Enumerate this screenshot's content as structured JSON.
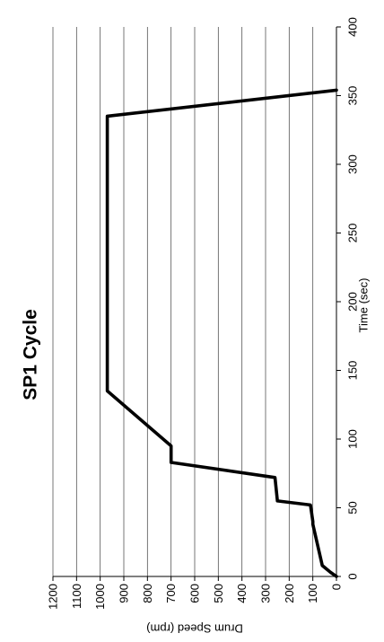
{
  "chart_data": {
    "type": "line",
    "title": "SP1 Cycle",
    "xlabel": "Time (sec)",
    "ylabel": "Drum Speed (rpm)",
    "xlim": [
      0,
      400
    ],
    "ylim": [
      0,
      1200
    ],
    "x_ticks": [
      0,
      50,
      100,
      150,
      200,
      250,
      300,
      350,
      400
    ],
    "y_ticks": [
      0,
      100,
      200,
      300,
      400,
      500,
      600,
      700,
      800,
      900,
      1000,
      1100,
      1200
    ],
    "grid": true,
    "orientation": "rotated 90 degrees clockwise",
    "series": [
      {
        "x": [
          0,
          3,
          8,
          38,
          40,
          52,
          55,
          72,
          83,
          95,
          135,
          335,
          354
        ],
        "y": [
          0,
          25,
          60,
          100,
          100,
          110,
          250,
          260,
          700,
          700,
          970,
          970,
          0
        ]
      }
    ]
  }
}
